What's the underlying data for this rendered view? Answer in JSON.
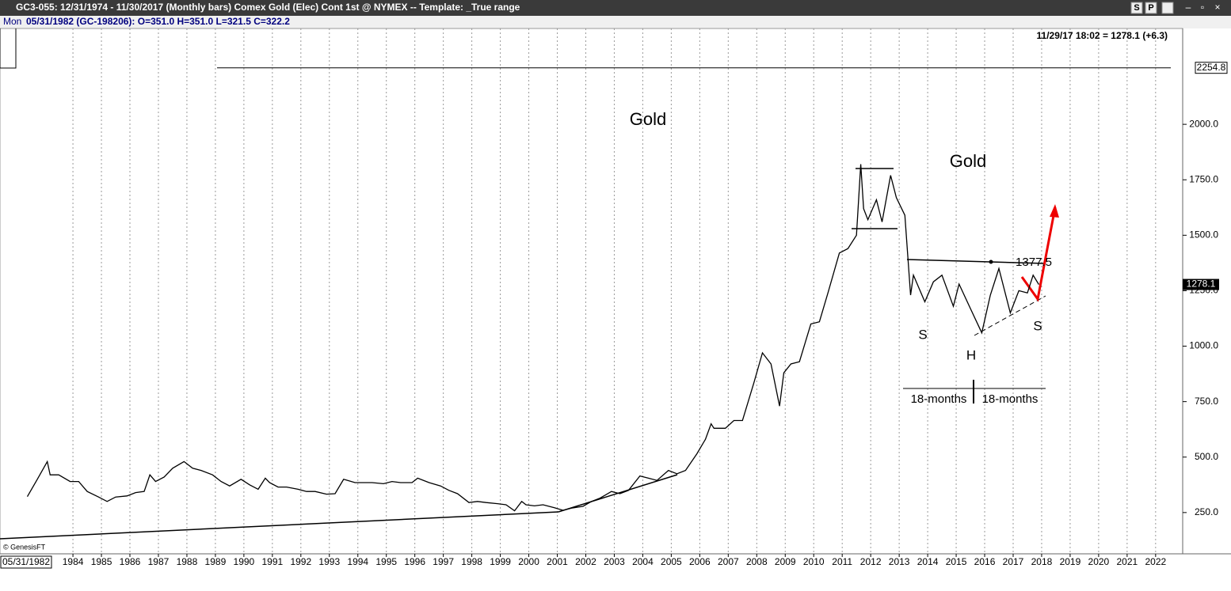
{
  "window": {
    "title": "GC3-055:  12/31/1974 - 11/30/2017  (Monthly bars)   Comex Gold (Elec) Cont 1st @ NYMEX  --  Template: _True range",
    "buttons": [
      "S",
      "P"
    ]
  },
  "info": {
    "period": "Mon",
    "text": "05/31/1982 (GC-198206):  O=351.0  H=351.0  L=321.5  C=322.2"
  },
  "chart_data": {
    "type": "line",
    "last_quote": "11/29/17 18:02 = 1278.1 (+6.3)",
    "cursor_date": "05/31/1982",
    "copyright": "© GenesisFT",
    "annotations": [
      "Gold",
      "Gold",
      "1377.5",
      "S",
      "H",
      "S",
      "18-months",
      "18-months"
    ],
    "price_line": {
      "value": 2254.8,
      "label": "2254.8"
    },
    "last_price": {
      "value": 1278.1,
      "label": "1278.1"
    },
    "color": "#000000",
    "x": [
      1982.4,
      1982.75,
      1983.1,
      1983.2,
      1983.5,
      1983.9,
      1984.2,
      1984.5,
      1984.9,
      1985.2,
      1985.5,
      1985.9,
      1986.2,
      1986.5,
      1986.7,
      1986.9,
      1987.2,
      1987.5,
      1987.9,
      1988.2,
      1988.5,
      1988.9,
      1989.2,
      1989.5,
      1989.9,
      1990.2,
      1990.5,
      1990.75,
      1990.9,
      1991.2,
      1991.5,
      1991.9,
      1992.2,
      1992.5,
      1992.9,
      1993.2,
      1993.5,
      1993.9,
      1994.2,
      1994.5,
      1994.9,
      1995.2,
      1995.5,
      1995.9,
      1996.1,
      1996.5,
      1996.9,
      1997.2,
      1997.5,
      1997.9,
      1998.2,
      1998.5,
      1998.9,
      1999.2,
      1999.5,
      1999.75,
      1999.9,
      2000.2,
      2000.5,
      2000.9,
      2001.2,
      2001.5,
      2001.9,
      2002.2,
      2002.5,
      2002.9,
      2003.2,
      2003.5,
      2003.9,
      2004.2,
      2004.5,
      2004.9,
      2005.2,
      2005.5,
      2005.9,
      2006.2,
      2006.4,
      2006.5,
      2006.9,
      2007.2,
      2007.5,
      2007.9,
      2008.2,
      2008.5,
      2008.8,
      2008.95,
      2009.2,
      2009.5,
      2009.9,
      2010.2,
      2010.5,
      2010.9,
      2011.2,
      2011.5,
      2011.65,
      2011.75,
      2011.9,
      2012.2,
      2012.4,
      2012.7,
      2012.9,
      2013.2,
      2013.4,
      2013.5,
      2013.9,
      2014.2,
      2014.5,
      2014.9,
      2015.1,
      2015.5,
      2015.9,
      2016.2,
      2016.5,
      2016.9,
      2017.2,
      2017.5,
      2017.7,
      2017.9
    ],
    "values": [
      322,
      400,
      480,
      420,
      420,
      390,
      390,
      345,
      320,
      300,
      320,
      325,
      340,
      345,
      420,
      390,
      410,
      450,
      480,
      450,
      440,
      420,
      390,
      370,
      400,
      375,
      355,
      405,
      385,
      365,
      365,
      355,
      345,
      345,
      333,
      335,
      400,
      385,
      385,
      385,
      380,
      390,
      385,
      385,
      405,
      385,
      370,
      350,
      335,
      295,
      300,
      295,
      290,
      285,
      258,
      300,
      285,
      280,
      285,
      272,
      260,
      270,
      278,
      300,
      315,
      345,
      335,
      350,
      415,
      405,
      395,
      440,
      425,
      440,
      515,
      580,
      650,
      630,
      630,
      665,
      665,
      835,
      970,
      920,
      730,
      880,
      920,
      930,
      1100,
      1110,
      1240,
      1420,
      1440,
      1500,
      1820,
      1620,
      1570,
      1660,
      1560,
      1770,
      1670,
      1590,
      1230,
      1320,
      1200,
      1290,
      1320,
      1180,
      1280,
      1170,
      1060,
      1230,
      1350,
      1150,
      1250,
      1240,
      1320,
      1278.1
    ],
    "xlim": [
      1981.44,
      2022.95
    ],
    "ylim": [
      64,
      2432
    ],
    "xticks": [
      1984,
      1985,
      1986,
      1987,
      1988,
      1989,
      1990,
      1991,
      1992,
      1993,
      1994,
      1995,
      1996,
      1997,
      1998,
      1999,
      2000,
      2001,
      2002,
      2003,
      2004,
      2005,
      2006,
      2007,
      2008,
      2009,
      2010,
      2011,
      2012,
      2013,
      2014,
      2015,
      2016,
      2017,
      2018,
      2019,
      2020,
      2021,
      2022
    ],
    "yticks": [
      {
        "value": 250,
        "label": "250.0"
      },
      {
        "value": 500,
        "label": "500.0"
      },
      {
        "value": 750,
        "label": "750.0"
      },
      {
        "value": 1000,
        "label": "1000.0"
      },
      {
        "value": 1250,
        "label": "1250.0"
      },
      {
        "value": 1500,
        "label": "1500.0"
      },
      {
        "value": 1750,
        "label": "1750.0"
      },
      {
        "value": 2000,
        "label": "2000.0"
      }
    ],
    "grid": "x"
  }
}
